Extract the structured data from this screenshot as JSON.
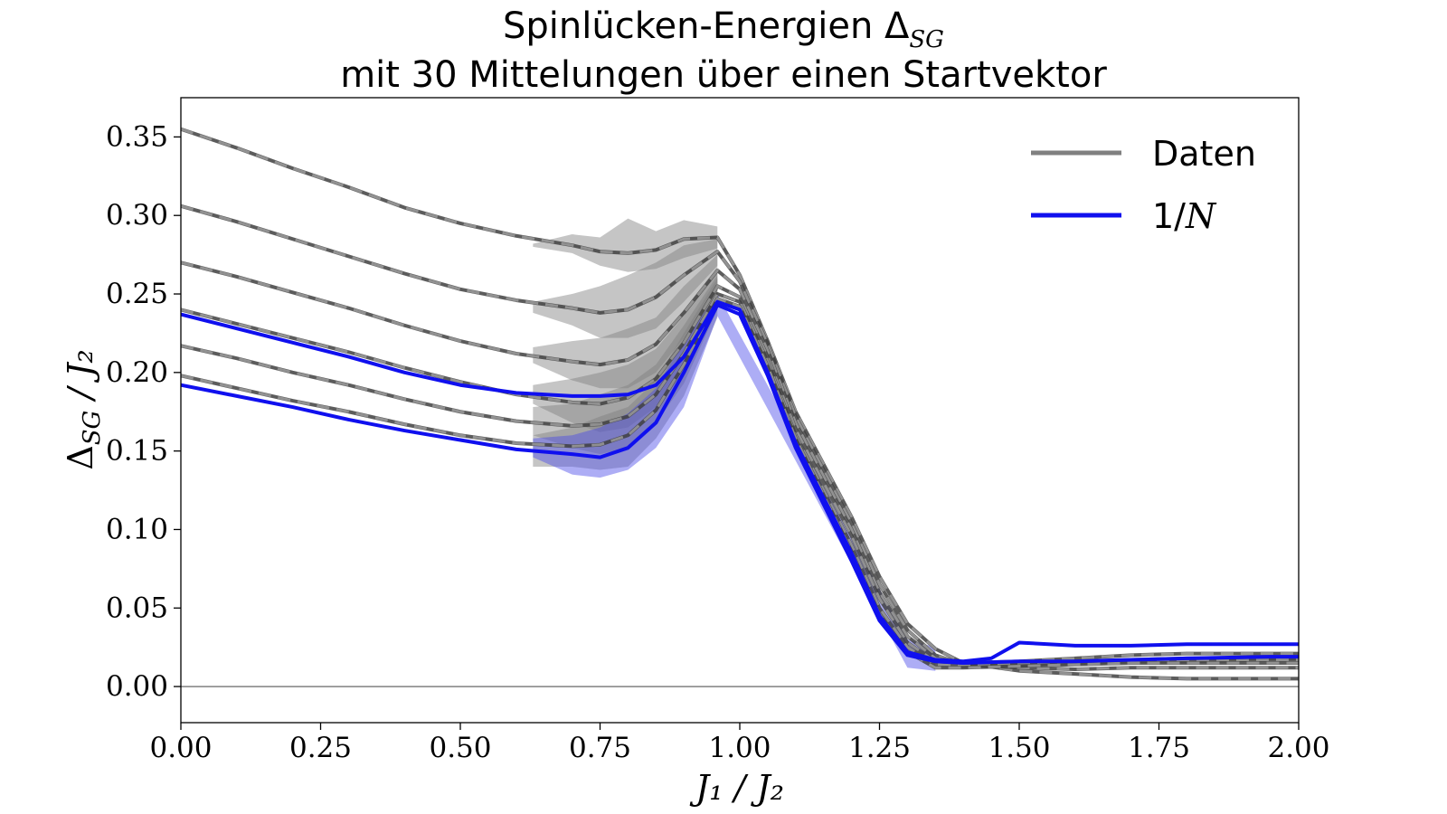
{
  "chart_data": {
    "type": "line",
    "title_line1": "Spinlücken-Energien Δ",
    "title_line1_sub": "SG",
    "title_line2": "mit 30 Mittelungen über einen Startvektor",
    "xlabel": "J₁ / J₂",
    "ylabel": "Δ",
    "ylabel_sub": "SG",
    "ylabel_rest": " / J₂",
    "xlim": [
      0.0,
      2.0
    ],
    "ylim": [
      -0.023,
      0.375
    ],
    "xticks": [
      "0.00",
      "0.25",
      "0.50",
      "0.75",
      "1.00",
      "1.25",
      "1.50",
      "1.75",
      "2.00"
    ],
    "yticks": [
      "0.00",
      "0.05",
      "0.10",
      "0.15",
      "0.20",
      "0.25",
      "0.30",
      "0.35"
    ],
    "grid": false,
    "zero_line": 0.0,
    "legend": {
      "position": "top-right",
      "entries": [
        {
          "label": "Daten",
          "color": "#808080"
        },
        {
          "label": "1/",
          "label_math": "N",
          "color": "#1010ee"
        }
      ]
    },
    "colors": {
      "data": "#404040",
      "data_band": "#7f7f7f",
      "fit": "#1010ee",
      "fit_band": "#4a4ae8"
    },
    "series": [
      {
        "color": "gray",
        "points": [
          [
            0.0,
            0.355
          ],
          [
            0.1,
            0.343
          ],
          [
            0.2,
            0.33
          ],
          [
            0.3,
            0.318
          ],
          [
            0.4,
            0.305
          ],
          [
            0.5,
            0.295
          ],
          [
            0.6,
            0.287
          ],
          [
            0.7,
            0.281
          ],
          [
            0.75,
            0.277
          ],
          [
            0.8,
            0.276
          ],
          [
            0.85,
            0.278
          ],
          [
            0.9,
            0.285
          ],
          [
            0.96,
            0.286
          ],
          [
            1.0,
            0.262
          ],
          [
            1.05,
            0.22
          ],
          [
            1.1,
            0.175
          ],
          [
            1.2,
            0.108
          ],
          [
            1.25,
            0.07
          ],
          [
            1.3,
            0.04
          ],
          [
            1.35,
            0.024
          ],
          [
            1.4,
            0.015
          ],
          [
            1.5,
            0.01
          ],
          [
            1.6,
            0.008
          ],
          [
            1.7,
            0.006
          ],
          [
            1.8,
            0.005
          ],
          [
            1.95,
            0.005
          ],
          [
            2.0,
            0.005
          ]
        ],
        "band": [
          [
            0.63,
            0.282,
            0.28
          ],
          [
            0.7,
            0.288,
            0.276
          ],
          [
            0.75,
            0.286,
            0.268
          ],
          [
            0.8,
            0.298,
            0.264
          ],
          [
            0.85,
            0.29,
            0.266
          ],
          [
            0.9,
            0.297,
            0.273
          ],
          [
            0.96,
            0.293,
            0.279
          ]
        ]
      },
      {
        "color": "gray",
        "points": [
          [
            0.0,
            0.306
          ],
          [
            0.1,
            0.296
          ],
          [
            0.2,
            0.285
          ],
          [
            0.3,
            0.274
          ],
          [
            0.4,
            0.263
          ],
          [
            0.5,
            0.253
          ],
          [
            0.6,
            0.246
          ],
          [
            0.7,
            0.241
          ],
          [
            0.75,
            0.238
          ],
          [
            0.8,
            0.24
          ],
          [
            0.85,
            0.248
          ],
          [
            0.9,
            0.262
          ],
          [
            0.96,
            0.277
          ],
          [
            1.0,
            0.258
          ],
          [
            1.05,
            0.218
          ],
          [
            1.1,
            0.172
          ],
          [
            1.2,
            0.104
          ],
          [
            1.25,
            0.065
          ],
          [
            1.3,
            0.036
          ],
          [
            1.35,
            0.02
          ],
          [
            1.4,
            0.014
          ],
          [
            1.5,
            0.012
          ],
          [
            1.6,
            0.011
          ],
          [
            1.7,
            0.012
          ],
          [
            1.8,
            0.012
          ],
          [
            1.95,
            0.012
          ],
          [
            2.0,
            0.012
          ]
        ],
        "band": [
          [
            0.63,
            0.245,
            0.238
          ],
          [
            0.7,
            0.25,
            0.23
          ],
          [
            0.75,
            0.255,
            0.222
          ],
          [
            0.8,
            0.262,
            0.222
          ],
          [
            0.85,
            0.27,
            0.228
          ],
          [
            0.9,
            0.281,
            0.245
          ],
          [
            0.96,
            0.285,
            0.268
          ]
        ]
      },
      {
        "color": "gray",
        "points": [
          [
            0.0,
            0.27
          ],
          [
            0.1,
            0.261
          ],
          [
            0.2,
            0.251
          ],
          [
            0.3,
            0.241
          ],
          [
            0.4,
            0.23
          ],
          [
            0.5,
            0.22
          ],
          [
            0.6,
            0.212
          ],
          [
            0.7,
            0.207
          ],
          [
            0.75,
            0.205
          ],
          [
            0.8,
            0.208
          ],
          [
            0.85,
            0.218
          ],
          [
            0.9,
            0.238
          ],
          [
            0.96,
            0.265
          ],
          [
            1.0,
            0.253
          ],
          [
            1.05,
            0.214
          ],
          [
            1.1,
            0.168
          ],
          [
            1.2,
            0.1
          ],
          [
            1.25,
            0.06
          ],
          [
            1.3,
            0.032
          ],
          [
            1.35,
            0.018
          ],
          [
            1.4,
            0.015
          ],
          [
            1.5,
            0.015
          ],
          [
            1.6,
            0.016
          ],
          [
            1.7,
            0.017
          ],
          [
            1.8,
            0.018
          ],
          [
            1.95,
            0.018
          ],
          [
            2.0,
            0.018
          ]
        ],
        "band": [
          [
            0.63,
            0.216,
            0.206
          ],
          [
            0.7,
            0.22,
            0.195
          ],
          [
            0.75,
            0.222,
            0.19
          ],
          [
            0.8,
            0.228,
            0.19
          ],
          [
            0.85,
            0.235,
            0.2
          ],
          [
            0.9,
            0.255,
            0.222
          ],
          [
            0.96,
            0.275,
            0.255
          ]
        ]
      },
      {
        "color": "gray",
        "points": [
          [
            0.0,
            0.24
          ],
          [
            0.1,
            0.231
          ],
          [
            0.2,
            0.222
          ],
          [
            0.3,
            0.213
          ],
          [
            0.4,
            0.203
          ],
          [
            0.5,
            0.194
          ],
          [
            0.6,
            0.186
          ],
          [
            0.7,
            0.181
          ],
          [
            0.75,
            0.18
          ],
          [
            0.8,
            0.184
          ],
          [
            0.85,
            0.196
          ],
          [
            0.9,
            0.219
          ],
          [
            0.96,
            0.255
          ],
          [
            1.0,
            0.248
          ],
          [
            1.05,
            0.21
          ],
          [
            1.1,
            0.164
          ],
          [
            1.2,
            0.096
          ],
          [
            1.25,
            0.056
          ],
          [
            1.3,
            0.028
          ],
          [
            1.35,
            0.016
          ],
          [
            1.4,
            0.015
          ],
          [
            1.5,
            0.016
          ],
          [
            1.6,
            0.018
          ],
          [
            1.7,
            0.02
          ],
          [
            1.8,
            0.021
          ],
          [
            1.95,
            0.021
          ],
          [
            2.0,
            0.021
          ]
        ],
        "band": [
          [
            0.63,
            0.192,
            0.18
          ],
          [
            0.7,
            0.196,
            0.168
          ],
          [
            0.75,
            0.2,
            0.162
          ],
          [
            0.8,
            0.205,
            0.165
          ],
          [
            0.85,
            0.215,
            0.178
          ],
          [
            0.9,
            0.236,
            0.2
          ],
          [
            0.96,
            0.266,
            0.245
          ]
        ]
      },
      {
        "color": "gray",
        "points": [
          [
            0.0,
            0.217
          ],
          [
            0.1,
            0.209
          ],
          [
            0.2,
            0.2
          ],
          [
            0.3,
            0.192
          ],
          [
            0.4,
            0.183
          ],
          [
            0.5,
            0.175
          ],
          [
            0.6,
            0.169
          ],
          [
            0.7,
            0.166
          ],
          [
            0.75,
            0.167
          ],
          [
            0.8,
            0.172
          ],
          [
            0.85,
            0.186
          ],
          [
            0.9,
            0.212
          ],
          [
            0.96,
            0.25
          ],
          [
            1.0,
            0.245
          ],
          [
            1.05,
            0.207
          ],
          [
            1.1,
            0.16
          ],
          [
            1.2,
            0.09
          ],
          [
            1.25,
            0.05
          ],
          [
            1.3,
            0.025
          ],
          [
            1.35,
            0.014
          ],
          [
            1.4,
            0.013
          ],
          [
            1.5,
            0.014
          ],
          [
            1.6,
            0.015
          ],
          [
            1.7,
            0.016
          ],
          [
            1.8,
            0.016
          ],
          [
            1.95,
            0.017
          ],
          [
            2.0,
            0.017
          ]
        ],
        "band": [
          [
            0.63,
            0.178,
            0.16
          ],
          [
            0.7,
            0.18,
            0.152
          ],
          [
            0.75,
            0.186,
            0.148
          ],
          [
            0.8,
            0.192,
            0.152
          ],
          [
            0.85,
            0.205,
            0.168
          ],
          [
            0.9,
            0.23,
            0.193
          ],
          [
            0.96,
            0.262,
            0.24
          ]
        ]
      },
      {
        "color": "gray",
        "points": [
          [
            0.0,
            0.198
          ],
          [
            0.1,
            0.19
          ],
          [
            0.2,
            0.182
          ],
          [
            0.3,
            0.175
          ],
          [
            0.4,
            0.167
          ],
          [
            0.5,
            0.16
          ],
          [
            0.6,
            0.155
          ],
          [
            0.7,
            0.153
          ],
          [
            0.75,
            0.154
          ],
          [
            0.8,
            0.16
          ],
          [
            0.85,
            0.176
          ],
          [
            0.9,
            0.205
          ],
          [
            0.96,
            0.247
          ],
          [
            1.0,
            0.242
          ],
          [
            1.05,
            0.204
          ],
          [
            1.1,
            0.158
          ],
          [
            1.2,
            0.086
          ],
          [
            1.25,
            0.046
          ],
          [
            1.3,
            0.022
          ],
          [
            1.35,
            0.012
          ],
          [
            1.4,
            0.012
          ],
          [
            1.5,
            0.013
          ],
          [
            1.6,
            0.014
          ],
          [
            1.7,
            0.015
          ],
          [
            1.8,
            0.015
          ],
          [
            1.95,
            0.015
          ],
          [
            2.0,
            0.015
          ]
        ],
        "band": [
          [
            0.63,
            0.16,
            0.14
          ],
          [
            0.7,
            0.165,
            0.14
          ],
          [
            0.75,
            0.172,
            0.138
          ],
          [
            0.8,
            0.178,
            0.14
          ],
          [
            0.85,
            0.195,
            0.158
          ],
          [
            0.9,
            0.225,
            0.185
          ],
          [
            0.96,
            0.26,
            0.235
          ]
        ]
      },
      {
        "color": "blue",
        "points": [
          [
            0.0,
            0.237
          ],
          [
            0.1,
            0.228
          ],
          [
            0.2,
            0.219
          ],
          [
            0.3,
            0.21
          ],
          [
            0.4,
            0.2
          ],
          [
            0.5,
            0.192
          ],
          [
            0.6,
            0.187
          ],
          [
            0.7,
            0.185
          ],
          [
            0.75,
            0.185
          ],
          [
            0.8,
            0.186
          ],
          [
            0.85,
            0.192
          ],
          [
            0.9,
            0.21
          ],
          [
            0.96,
            0.245
          ],
          [
            1.0,
            0.24
          ],
          [
            1.05,
            0.2
          ],
          [
            1.1,
            0.155
          ],
          [
            1.2,
            0.085
          ],
          [
            1.25,
            0.045
          ],
          [
            1.3,
            0.022
          ],
          [
            1.35,
            0.017
          ],
          [
            1.4,
            0.016
          ],
          [
            1.45,
            0.018
          ],
          [
            1.5,
            0.028
          ],
          [
            1.6,
            0.026
          ],
          [
            1.7,
            0.026
          ],
          [
            1.8,
            0.027
          ],
          [
            1.95,
            0.027
          ],
          [
            2.0,
            0.027
          ]
        ],
        "band": []
      },
      {
        "color": "blue",
        "points": [
          [
            0.0,
            0.192
          ],
          [
            0.1,
            0.185
          ],
          [
            0.2,
            0.178
          ],
          [
            0.3,
            0.17
          ],
          [
            0.4,
            0.163
          ],
          [
            0.5,
            0.157
          ],
          [
            0.6,
            0.151
          ],
          [
            0.7,
            0.148
          ],
          [
            0.75,
            0.146
          ],
          [
            0.8,
            0.152
          ],
          [
            0.85,
            0.168
          ],
          [
            0.9,
            0.2
          ],
          [
            0.96,
            0.243
          ],
          [
            1.0,
            0.237
          ],
          [
            1.05,
            0.198
          ],
          [
            1.1,
            0.152
          ],
          [
            1.2,
            0.08
          ],
          [
            1.25,
            0.042
          ],
          [
            1.3,
            0.02
          ],
          [
            1.35,
            0.016
          ],
          [
            1.4,
            0.015
          ],
          [
            1.5,
            0.016
          ],
          [
            1.6,
            0.016
          ],
          [
            1.7,
            0.017
          ],
          [
            1.8,
            0.018
          ],
          [
            1.95,
            0.019
          ],
          [
            2.0,
            0.019
          ]
        ],
        "band": [
          [
            0.63,
            0.158,
            0.146
          ],
          [
            0.7,
            0.16,
            0.135
          ],
          [
            0.75,
            0.165,
            0.133
          ],
          [
            0.8,
            0.174,
            0.138
          ],
          [
            0.85,
            0.19,
            0.152
          ],
          [
            0.9,
            0.22,
            0.178
          ],
          [
            0.96,
            0.25,
            0.236
          ],
          [
            1.3,
            0.03,
            0.012
          ],
          [
            1.35,
            0.025,
            0.01
          ]
        ]
      }
    ]
  }
}
